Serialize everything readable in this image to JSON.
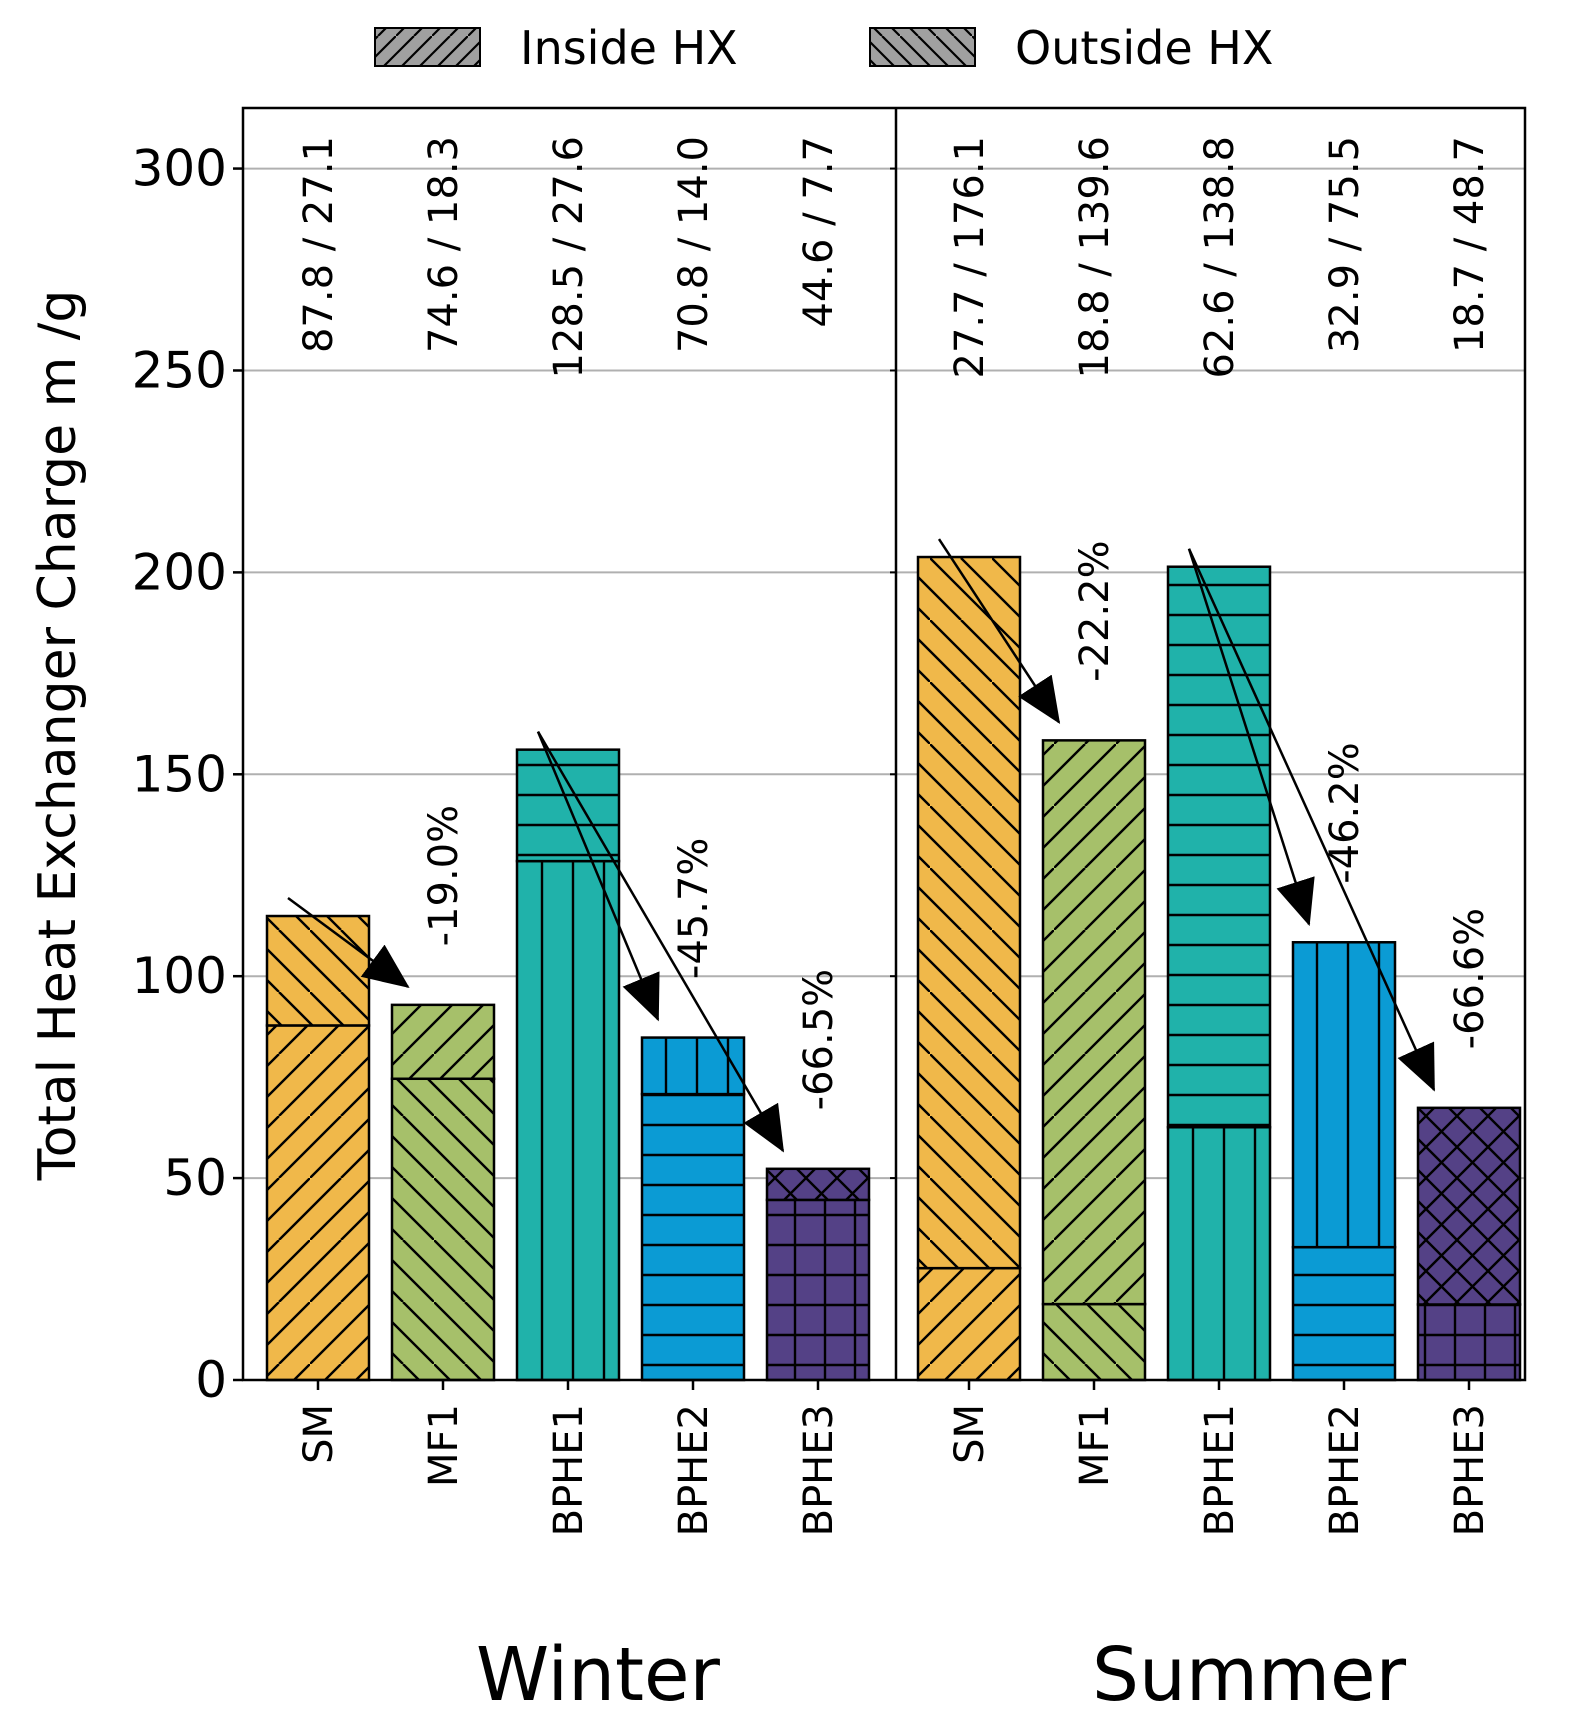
{
  "chart_data": {
    "type": "bar",
    "stacked": true,
    "ylabel": "Total Heat Exchanger Charge m /g",
    "ylim": [
      0,
      315
    ],
    "yticks": [
      0,
      50,
      100,
      150,
      200,
      250,
      300
    ],
    "grid": true,
    "legend": {
      "placement": "top-center",
      "entries": [
        {
          "name": "Inside HX",
          "hatch": "forward-diagonal"
        },
        {
          "name": "Outside HX",
          "hatch": "back-diagonal"
        }
      ]
    },
    "groups": [
      {
        "name": "Winter",
        "bars": [
          {
            "label": "SM",
            "inside": 87.8,
            "outside": 27.1,
            "annotation": "87.8 / 27.1",
            "color": "#f0b84a",
            "inside_hatch": "diag-fwd",
            "outside_hatch": "diag-back"
          },
          {
            "label": "MF1",
            "inside": 74.6,
            "outside": 18.3,
            "annotation": "74.6 / 18.3",
            "color": "#a6c06a",
            "inside_hatch": "diag-back",
            "outside_hatch": "diag-fwd"
          },
          {
            "label": "BPHE1",
            "inside": 128.5,
            "outside": 27.6,
            "annotation": "128.5 / 27.6",
            "color": "#20b2aa",
            "inside_hatch": "vert",
            "outside_hatch": "horiz"
          },
          {
            "label": "BPHE2",
            "inside": 70.8,
            "outside": 14.0,
            "annotation": "70.8 / 14.0",
            "color": "#0b9bd4",
            "inside_hatch": "horiz",
            "outside_hatch": "vert"
          },
          {
            "label": "BPHE3",
            "inside": 44.6,
            "outside": 7.7,
            "annotation": "44.6 / 7.7",
            "color": "#544186",
            "inside_hatch": "grid",
            "outside_hatch": "cross"
          }
        ],
        "reductions": [
          {
            "from": "SM",
            "to": "MF1",
            "text": "-19.0%"
          },
          {
            "from": "BPHE1",
            "to": "BPHE2",
            "text": "-45.7%"
          },
          {
            "from": "BPHE1",
            "to": "BPHE3",
            "text": "-66.5%"
          }
        ]
      },
      {
        "name": "Summer",
        "bars": [
          {
            "label": "SM",
            "inside": 27.7,
            "outside": 176.1,
            "annotation": "27.7 / 176.1",
            "color": "#f0b84a",
            "inside_hatch": "diag-fwd",
            "outside_hatch": "diag-back"
          },
          {
            "label": "MF1",
            "inside": 18.8,
            "outside": 139.6,
            "annotation": "18.8 / 139.6",
            "color": "#a6c06a",
            "inside_hatch": "diag-back",
            "outside_hatch": "diag-fwd"
          },
          {
            "label": "BPHE1",
            "inside": 62.6,
            "outside": 138.8,
            "annotation": "62.6 / 138.8",
            "color": "#20b2aa",
            "inside_hatch": "vert",
            "outside_hatch": "horiz"
          },
          {
            "label": "BPHE2",
            "inside": 32.9,
            "outside": 75.5,
            "annotation": "32.9 / 75.5",
            "color": "#0b9bd4",
            "inside_hatch": "horiz",
            "outside_hatch": "vert"
          },
          {
            "label": "BPHE3",
            "inside": 18.7,
            "outside": 48.7,
            "annotation": "18.7 / 48.7",
            "color": "#544186",
            "inside_hatch": "grid",
            "outside_hatch": "cross"
          }
        ],
        "reductions": [
          {
            "from": "SM",
            "to": "MF1",
            "text": "-22.2%"
          },
          {
            "from": "BPHE1",
            "to": "BPHE2",
            "text": "-46.2%"
          },
          {
            "from": "BPHE1",
            "to": "BPHE3",
            "text": "-66.6%"
          }
        ]
      }
    ]
  }
}
